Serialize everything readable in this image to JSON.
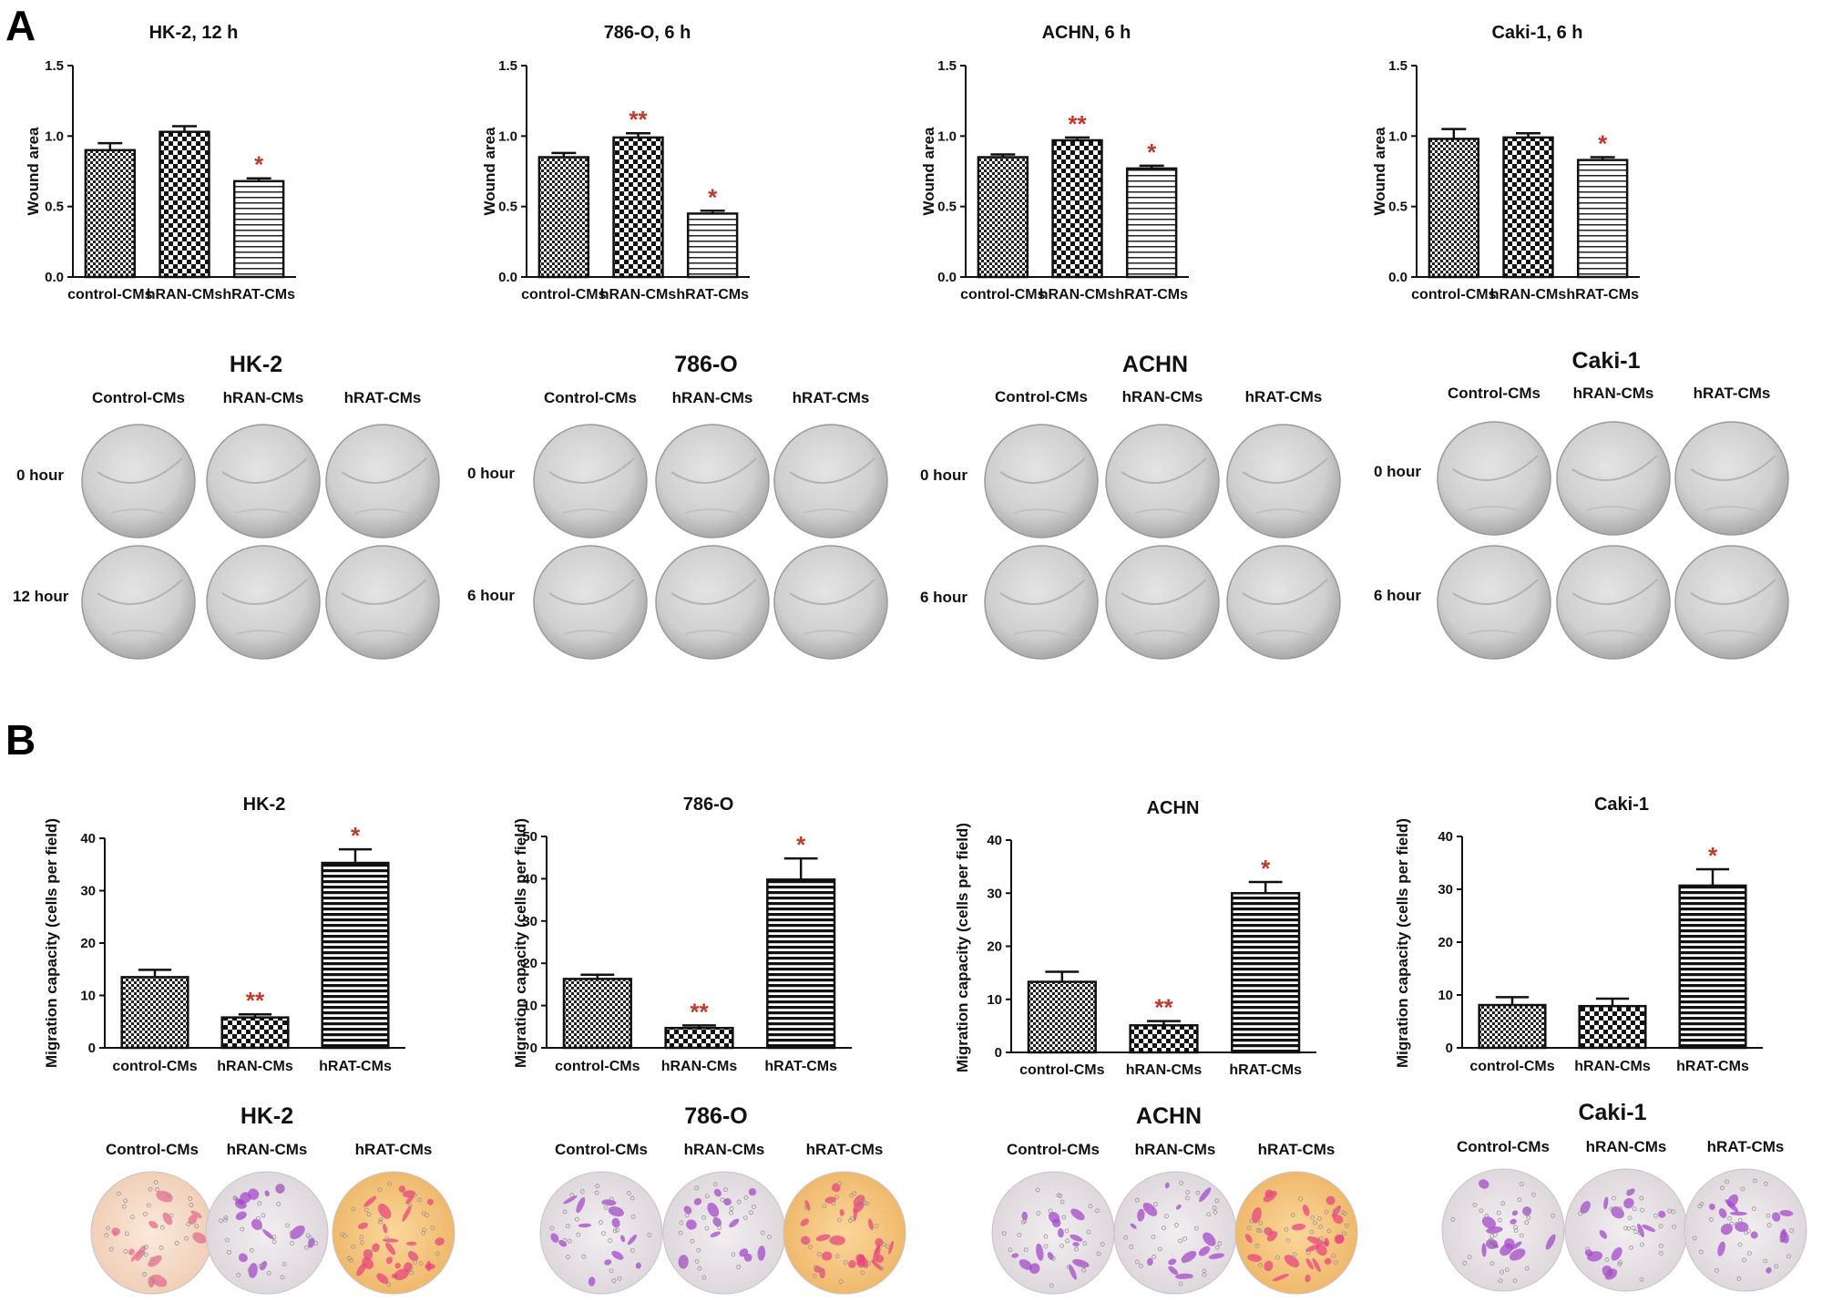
{
  "panel_labels": [
    "A",
    "B"
  ],
  "colors": {
    "axis": "#111111",
    "significance": "#c0392b",
    "dish_wound": "#d4d4d4",
    "stain_purple": "#a64ac9",
    "stain_pink": "#e8457e",
    "background_yellow": "#f5d58a",
    "background_peach": "#f6e3d2"
  },
  "chart_data": [
    {
      "type": "bar",
      "panel": "A",
      "title": "HK-2, 12 h",
      "ylabel": "Wound area",
      "xlabel": "",
      "ylim": [
        0,
        1.5
      ],
      "yticks": [
        "0.0",
        "0.5",
        "1.0",
        "1.5"
      ],
      "categories": [
        "control-CMs",
        "hRAN-CMs",
        "hRAT-CMs"
      ],
      "values": [
        0.9,
        1.03,
        0.68
      ],
      "errors": [
        0.05,
        0.04,
        0.02
      ],
      "significance": [
        "",
        "",
        "*"
      ],
      "patterns": [
        "check-small",
        "check",
        "hlines"
      ]
    },
    {
      "type": "bar",
      "panel": "A",
      "title": "786-O, 6 h",
      "ylabel": "Wound area",
      "xlabel": "",
      "ylim": [
        0,
        1.5
      ],
      "yticks": [
        "0.0",
        "0.5",
        "1.0",
        "1.5"
      ],
      "categories": [
        "control-CMs",
        "hRAN-CMs",
        "hRAT-CMs"
      ],
      "values": [
        0.85,
        0.99,
        0.45
      ],
      "errors": [
        0.03,
        0.03,
        0.02
      ],
      "significance": [
        "",
        "**",
        "*"
      ],
      "patterns": [
        "check-small",
        "check",
        "hlines"
      ]
    },
    {
      "type": "bar",
      "panel": "A",
      "title": "ACHN, 6 h",
      "ylabel": "Wound area",
      "xlabel": "",
      "ylim": [
        0,
        1.5
      ],
      "yticks": [
        "0.0",
        "0.5",
        "1.0",
        "1.5"
      ],
      "categories": [
        "control-CMs",
        "hRAN-CMs",
        "hRAT-CMs"
      ],
      "values": [
        0.85,
        0.97,
        0.77
      ],
      "errors": [
        0.02,
        0.02,
        0.02
      ],
      "significance": [
        "",
        "**",
        "*"
      ],
      "patterns": [
        "check-small",
        "check",
        "hlines"
      ]
    },
    {
      "type": "bar",
      "panel": "A",
      "title": "Caki-1, 6 h",
      "ylabel": "Wound area",
      "xlabel": "",
      "ylim": [
        0,
        1.5
      ],
      "yticks": [
        "0.0",
        "0.5",
        "1.0",
        "1.5"
      ],
      "categories": [
        "control-CMs",
        "hRAN-CMs",
        "hRAT-CMs"
      ],
      "values": [
        0.98,
        0.99,
        0.83
      ],
      "errors": [
        0.07,
        0.03,
        0.02
      ],
      "significance": [
        "",
        "",
        "*"
      ],
      "patterns": [
        "check-small",
        "check",
        "hlines"
      ]
    },
    {
      "type": "bar",
      "panel": "B",
      "title": "HK-2",
      "ylabel": "Migration capacity (cells per field)",
      "xlabel": "",
      "ylim": [
        0,
        40
      ],
      "yticks": [
        "0",
        "10",
        "20",
        "30",
        "40"
      ],
      "categories": [
        "control-CMs",
        "hRAN-CMs",
        "hRAT-CMs"
      ],
      "values": [
        13.5,
        5.8,
        35.3
      ],
      "errors": [
        1.4,
        0.6,
        2.6
      ],
      "significance": [
        "",
        "**",
        "*"
      ],
      "patterns": [
        "check-small",
        "check",
        "hlines-dense"
      ]
    },
    {
      "type": "bar",
      "panel": "B",
      "title": "786-O",
      "ylabel": "Migration capacity (cells per field)",
      "xlabel": "",
      "ylim": [
        0,
        50
      ],
      "yticks": [
        "0",
        "10",
        "20",
        "30",
        "40",
        "50"
      ],
      "categories": [
        "control-CMs",
        "hRAN-CMs",
        "hRAT-CMs"
      ],
      "values": [
        16.3,
        4.7,
        39.8
      ],
      "errors": [
        1.0,
        0.6,
        5.0
      ],
      "significance": [
        "",
        "**",
        "*"
      ],
      "patterns": [
        "check-small",
        "check",
        "hlines-dense"
      ]
    },
    {
      "type": "bar",
      "panel": "B",
      "title": "ACHN",
      "ylabel": "Migration capacity (cells per field)",
      "xlabel": "",
      "ylim": [
        0,
        40
      ],
      "yticks": [
        "0",
        "10",
        "20",
        "30",
        "40"
      ],
      "categories": [
        "control-CMs",
        "hRAN-CMs",
        "hRAT-CMs"
      ],
      "values": [
        13.3,
        5.1,
        30.0
      ],
      "errors": [
        1.9,
        0.8,
        2.1
      ],
      "significance": [
        "",
        "**",
        "*"
      ],
      "patterns": [
        "check-small",
        "check",
        "hlines-dense"
      ]
    },
    {
      "type": "bar",
      "panel": "B",
      "title": "Caki-1",
      "ylabel": "Migration capacity (cells per field)",
      "xlabel": "",
      "ylim": [
        0,
        40
      ],
      "yticks": [
        "0",
        "10",
        "20",
        "30",
        "40"
      ],
      "categories": [
        "control-CMs",
        "hRAN-CMs",
        "hRAT-CMs"
      ],
      "values": [
        8.1,
        7.9,
        30.7
      ],
      "errors": [
        1.5,
        1.4,
        3.1
      ],
      "significance": [
        "",
        "",
        "*"
      ],
      "patterns": [
        "check-small",
        "check",
        "hlines-dense"
      ]
    }
  ],
  "image_groups_A": [
    {
      "cell_line": "HK-2",
      "columns": [
        "Control-CMs",
        "hRAN-CMs",
        "hRAT-CMs"
      ],
      "rows": [
        "0 hour",
        "12 hour"
      ]
    },
    {
      "cell_line": "786-O",
      "columns": [
        "Control-CMs",
        "hRAN-CMs",
        "hRAT-CMs"
      ],
      "rows": [
        "0 hour",
        "6 hour"
      ]
    },
    {
      "cell_line": "ACHN",
      "columns": [
        "Control-CMs",
        "hRAN-CMs",
        "hRAT-CMs"
      ],
      "rows": [
        "0 hour",
        "6 hour"
      ]
    },
    {
      "cell_line": "Caki-1",
      "columns": [
        "Control-CMs",
        "hRAN-CMs",
        "hRAT-CMs"
      ],
      "rows": [
        "0 hour",
        "6 hour"
      ]
    }
  ],
  "image_groups_B": [
    {
      "cell_line": "HK-2",
      "columns": [
        "Control-CMs",
        "hRAN-CMs",
        "hRAT-CMs"
      ],
      "stain": [
        "peach",
        "light",
        "yellow"
      ]
    },
    {
      "cell_line": "786-O",
      "columns": [
        "Control-CMs",
        "hRAN-CMs",
        "hRAT-CMs"
      ],
      "stain": [
        "light",
        "light",
        "yellow"
      ]
    },
    {
      "cell_line": "ACHN",
      "columns": [
        "Control-CMs",
        "hRAN-CMs",
        "hRAT-CMs"
      ],
      "stain": [
        "light",
        "light",
        "yellow"
      ]
    },
    {
      "cell_line": "Caki-1",
      "columns": [
        "Control-CMs",
        "hRAN-CMs",
        "hRAT-CMs"
      ],
      "stain": [
        "light",
        "light",
        "light"
      ]
    }
  ]
}
